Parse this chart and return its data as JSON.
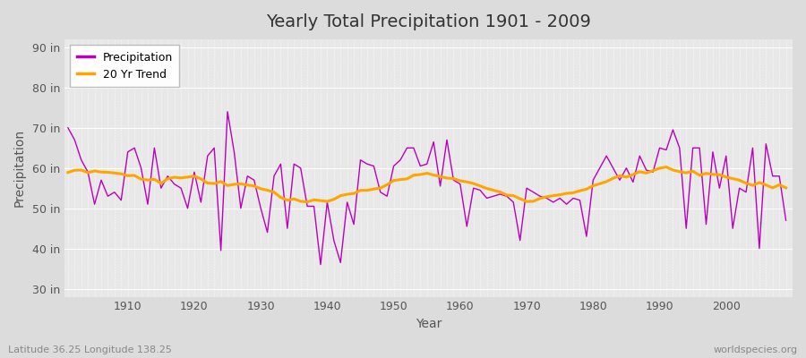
{
  "title": "Yearly Total Precipitation 1901 - 2009",
  "ylabel": "Precipitation",
  "xlabel": "Year",
  "bottom_left_label": "Latitude 36.25 Longitude 138.25",
  "bottom_right_label": "worldspecies.org",
  "ylim": [
    28,
    92
  ],
  "yticks": [
    30,
    40,
    50,
    60,
    70,
    80,
    90
  ],
  "ytick_labels": [
    "30 in",
    "40 in",
    "50 in",
    "60 in",
    "70 in",
    "80 in",
    "90 in"
  ],
  "xlim": [
    1900.5,
    2010
  ],
  "xticks": [
    1910,
    1920,
    1930,
    1940,
    1950,
    1960,
    1970,
    1980,
    1990,
    2000
  ],
  "precip_color": "#BB00BB",
  "trend_color": "#FFA500",
  "bg_color": "#DCDCDC",
  "plot_bg_color": "#E8E8E8",
  "grid_color": "#FFFFFF",
  "years": [
    1901,
    1902,
    1903,
    1904,
    1905,
    1906,
    1907,
    1908,
    1909,
    1910,
    1911,
    1912,
    1913,
    1914,
    1915,
    1916,
    1917,
    1918,
    1919,
    1920,
    1921,
    1922,
    1923,
    1924,
    1925,
    1926,
    1927,
    1928,
    1929,
    1930,
    1931,
    1932,
    1933,
    1934,
    1935,
    1936,
    1937,
    1938,
    1939,
    1940,
    1941,
    1942,
    1943,
    1944,
    1945,
    1946,
    1947,
    1948,
    1949,
    1950,
    1951,
    1952,
    1953,
    1954,
    1955,
    1956,
    1957,
    1958,
    1959,
    1960,
    1961,
    1962,
    1963,
    1964,
    1965,
    1966,
    1967,
    1968,
    1969,
    1970,
    1971,
    1972,
    1973,
    1974,
    1975,
    1976,
    1977,
    1978,
    1979,
    1980,
    1981,
    1982,
    1983,
    1984,
    1985,
    1986,
    1987,
    1988,
    1989,
    1990,
    1991,
    1992,
    1993,
    1994,
    1995,
    1996,
    1997,
    1998,
    1999,
    2000,
    2001,
    2002,
    2003,
    2004,
    2005,
    2006,
    2007,
    2008,
    2009
  ],
  "precip": [
    70.0,
    67.0,
    62.0,
    59.0,
    51.0,
    57.0,
    53.0,
    54.0,
    52.0,
    64.0,
    65.0,
    60.0,
    51.0,
    65.0,
    55.0,
    58.0,
    56.0,
    55.0,
    50.0,
    59.0,
    51.5,
    63.0,
    65.0,
    39.5,
    74.0,
    64.0,
    50.0,
    58.0,
    57.0,
    50.0,
    44.0,
    58.0,
    61.0,
    45.0,
    61.0,
    60.0,
    50.5,
    50.5,
    36.0,
    51.5,
    42.0,
    36.5,
    51.5,
    46.0,
    62.0,
    61.0,
    60.5,
    54.0,
    53.0,
    60.5,
    62.0,
    65.0,
    65.0,
    60.5,
    61.0,
    66.5,
    55.5,
    67.0,
    57.0,
    56.0,
    45.5,
    55.0,
    54.5,
    52.5,
    53.0,
    53.5,
    53.0,
    51.5,
    42.0,
    55.0,
    54.0,
    53.0,
    52.5,
    51.5,
    52.5,
    51.0,
    52.5,
    52.0,
    43.0,
    57.0,
    60.0,
    63.0,
    60.0,
    57.0,
    60.0,
    56.5,
    63.0,
    59.5,
    59.0,
    65.0,
    64.5,
    69.5,
    65.0,
    45.0,
    65.0,
    65.0,
    46.0,
    64.0,
    55.0,
    63.0,
    45.0,
    55.0,
    54.0,
    65.0,
    40.0,
    66.0,
    58.0,
    58.0,
    47.0
  ],
  "trend_window": 20
}
